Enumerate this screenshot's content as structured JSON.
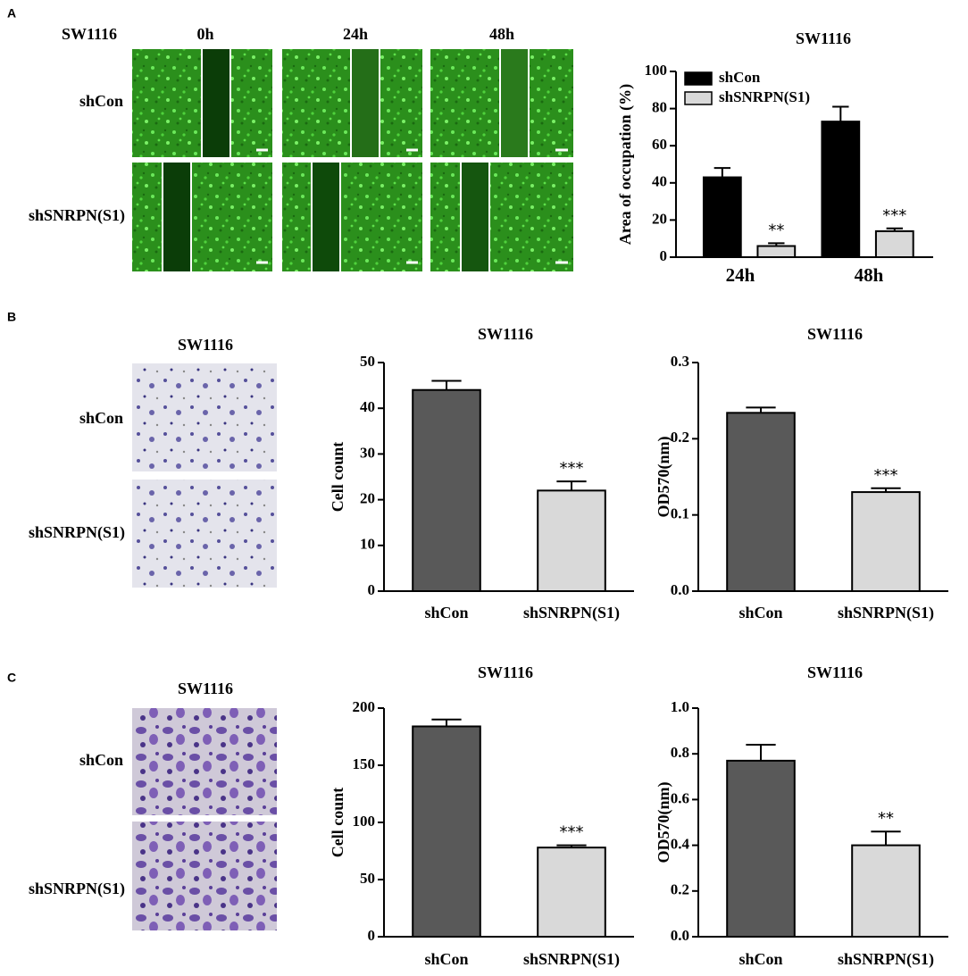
{
  "panels": {
    "A": {
      "label": "A",
      "image": {
        "title": "SW1116",
        "columns": [
          "0h",
          "24h",
          "48h"
        ],
        "rows": [
          "shCon",
          "shSNRPN(S1)"
        ]
      }
    },
    "B": {
      "label": "B",
      "image": {
        "title": "SW1116",
        "rows": [
          "shCon",
          "shSNRPN(S1)"
        ]
      }
    },
    "C": {
      "label": "C",
      "image": {
        "title": "SW1116",
        "rows": [
          "shCon",
          "shSNRPN(S1)"
        ]
      }
    }
  },
  "chart_data": [
    {
      "type": "bar",
      "title": "SW1116",
      "y_label": "Area of occupation (%)",
      "categories": [
        "24h",
        "48h"
      ],
      "series": [
        {
          "name": "shCon",
          "color": "#000000",
          "values": [
            43,
            73
          ],
          "errors": [
            5,
            8
          ]
        },
        {
          "name": "shSNRPN(S1)",
          "color": "#d9d9d9",
          "values": [
            6,
            14
          ],
          "errors": [
            1.5,
            1.5
          ],
          "annotations": [
            "**",
            "***"
          ]
        }
      ],
      "ylim": [
        0,
        100
      ],
      "yticks": [
        0,
        20,
        40,
        60,
        80,
        100
      ],
      "legend": "upper left"
    },
    {
      "type": "bar",
      "title": "SW1116",
      "y_label": "Cell count",
      "categories": [
        "shCon",
        "shSNRPN(S1)"
      ],
      "values": [
        44,
        22
      ],
      "errors": [
        2,
        2
      ],
      "colors": [
        "#595959",
        "#d9d9d9"
      ],
      "annotations": [
        null,
        "***"
      ],
      "ylim": [
        0,
        50
      ],
      "yticks": [
        0,
        10,
        20,
        30,
        40,
        50
      ]
    },
    {
      "type": "bar",
      "title": "SW1116",
      "y_label": "OD570(nm)",
      "categories": [
        "shCon",
        "shSNRPN(S1)"
      ],
      "values": [
        0.234,
        0.13
      ],
      "errors": [
        0.007,
        0.005
      ],
      "colors": [
        "#595959",
        "#d9d9d9"
      ],
      "annotations": [
        null,
        "***"
      ],
      "ylim": [
        0,
        0.3
      ],
      "yticks": [
        {
          "value": 0,
          "label": "0.0"
        },
        0.1,
        0.2,
        0.3
      ]
    },
    {
      "type": "bar",
      "title": "SW1116",
      "y_label": "Cell count",
      "categories": [
        "shCon",
        "shSNRPN(S1)"
      ],
      "values": [
        184,
        78
      ],
      "errors": [
        6,
        2
      ],
      "colors": [
        "#595959",
        "#d9d9d9"
      ],
      "annotations": [
        null,
        "***"
      ],
      "ylim": [
        0,
        200
      ],
      "yticks": [
        0,
        50,
        100,
        150,
        200
      ]
    },
    {
      "type": "bar",
      "title": "SW1116",
      "y_label": "OD570(nm)",
      "categories": [
        "shCon",
        "shSNRPN(S1)"
      ],
      "values": [
        0.77,
        0.4
      ],
      "errors": [
        0.07,
        0.06
      ],
      "colors": [
        "#595959",
        "#d9d9d9"
      ],
      "annotations": [
        null,
        "**"
      ],
      "ylim": [
        0,
        1.0
      ],
      "yticks": [
        {
          "value": 0,
          "label": "0.0"
        },
        0.2,
        0.4,
        0.6,
        0.8,
        {
          "value": 1,
          "label": "1.0"
        }
      ]
    }
  ]
}
